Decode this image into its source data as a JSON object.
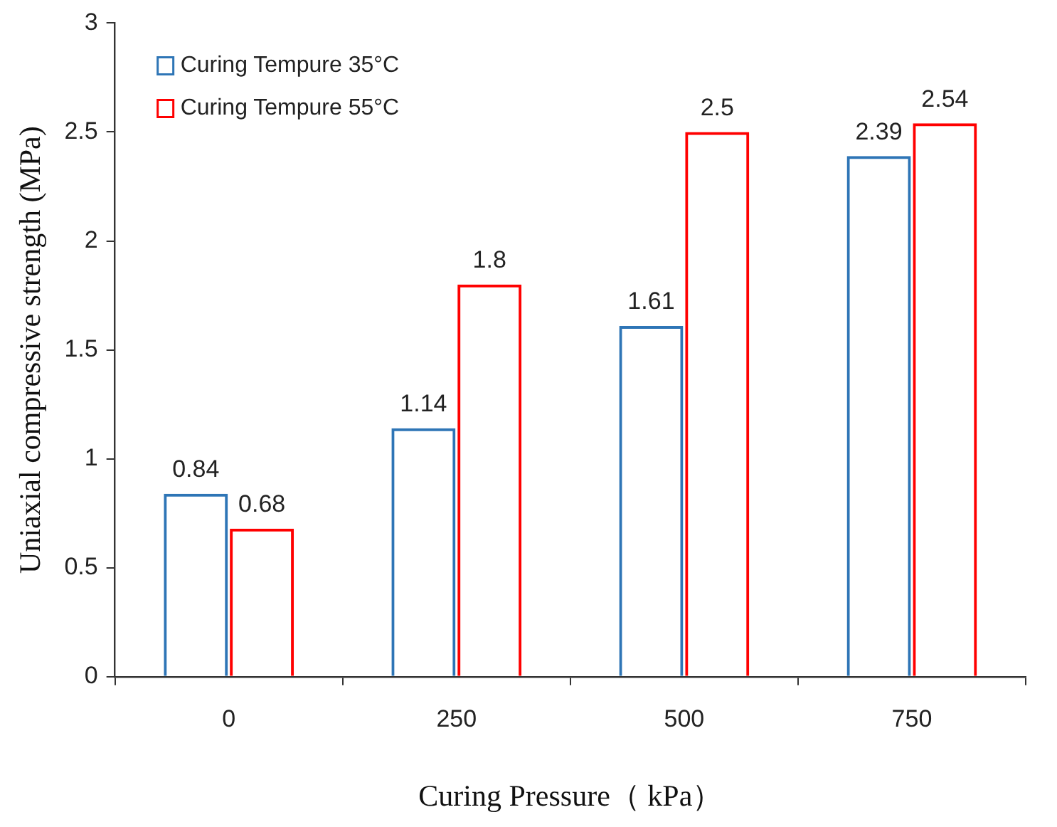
{
  "chart_data": {
    "type": "bar",
    "xlabel": "Curing Pressure（ kPa）",
    "ylabel": "Uniaxial compressive strength (MPa)",
    "categories": [
      "0",
      "250",
      "500",
      "750"
    ],
    "series": [
      {
        "name": "Curing Tempure 35°C",
        "color": "#2e75b6",
        "values": [
          0.84,
          1.14,
          1.61,
          2.39
        ]
      },
      {
        "name": "Curing Tempure 55°C",
        "color": "#ff0000",
        "values": [
          0.68,
          1.8,
          2.5,
          2.54
        ]
      }
    ],
    "ylim": [
      0,
      3
    ],
    "yticks": [
      0,
      0.5,
      1,
      1.5,
      2,
      2.5,
      3
    ],
    "grid": false,
    "legend": "top left",
    "data_labels": true
  }
}
